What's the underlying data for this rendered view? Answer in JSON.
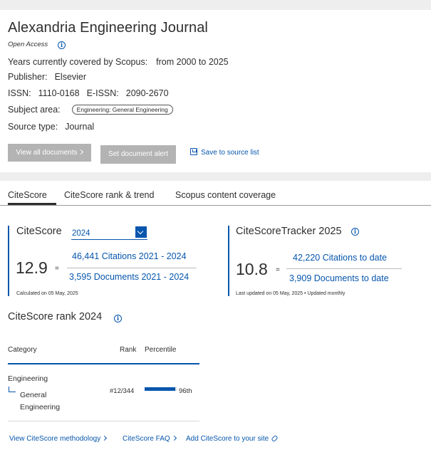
{
  "journal": {
    "title": "Alexandria Engineering Journal",
    "open_access": "Open Access",
    "years_label": "Years currently covered by Scopus:",
    "years_value": "from 2000 to 2025",
    "publisher_label": "Publisher:",
    "publisher_value": "Elsevier",
    "issn_label": "ISSN:",
    "issn_value": "1110-0168",
    "eissn_label": "E-ISSN:",
    "eissn_value": "2090-2670",
    "subject_label": "Subject area:",
    "subject_chip": "Engineering: General Engineering",
    "source_type_label": "Source type:",
    "source_type_value": "Journal"
  },
  "actions": {
    "view_all": "View all documents",
    "set_alert": "Set document alert",
    "save": "Save to source list"
  },
  "tabs": [
    {
      "label": "CiteScore",
      "active": true
    },
    {
      "label": "CiteScore rank & trend",
      "active": false
    },
    {
      "label": "Scopus content coverage",
      "active": false
    }
  ],
  "citescore": {
    "title": "CiteScore",
    "year": "2024",
    "value": "12.9",
    "equals": "=",
    "citations": "46,441 Citations 2021 - 2024",
    "documents": "3,595 Documents 2021 - 2024",
    "calculated": "Calculated on 05 May, 2025"
  },
  "tracker": {
    "title": "CiteScoreTracker 2025",
    "value": "10.8",
    "equals": "=",
    "citations": "42,220 Citations to date",
    "documents": "3,909 Documents to date",
    "updated": "Last updated on 05 May, 2025 • Updated monthly"
  },
  "rank": {
    "title": "CiteScore rank 2024",
    "headers": {
      "category": "Category",
      "rank": "Rank",
      "percentile": "Percentile"
    },
    "rows": [
      {
        "category": "Engineering",
        "sub1": "General",
        "sub2": "Engineering",
        "rank": "#12/344",
        "percentile": "96th",
        "percentile_value": 96
      }
    ]
  },
  "footer": {
    "methodology": "View CiteScore methodology",
    "faq": "CiteScore FAQ",
    "add": "Add CiteScore to your site"
  },
  "colors": {
    "accent": "#0656ad",
    "disabled_button": "#b3b3b3"
  },
  "icons": [
    "info-icon",
    "save-icon",
    "chevron-down-icon",
    "chevron-right-icon",
    "external-link-icon"
  ]
}
